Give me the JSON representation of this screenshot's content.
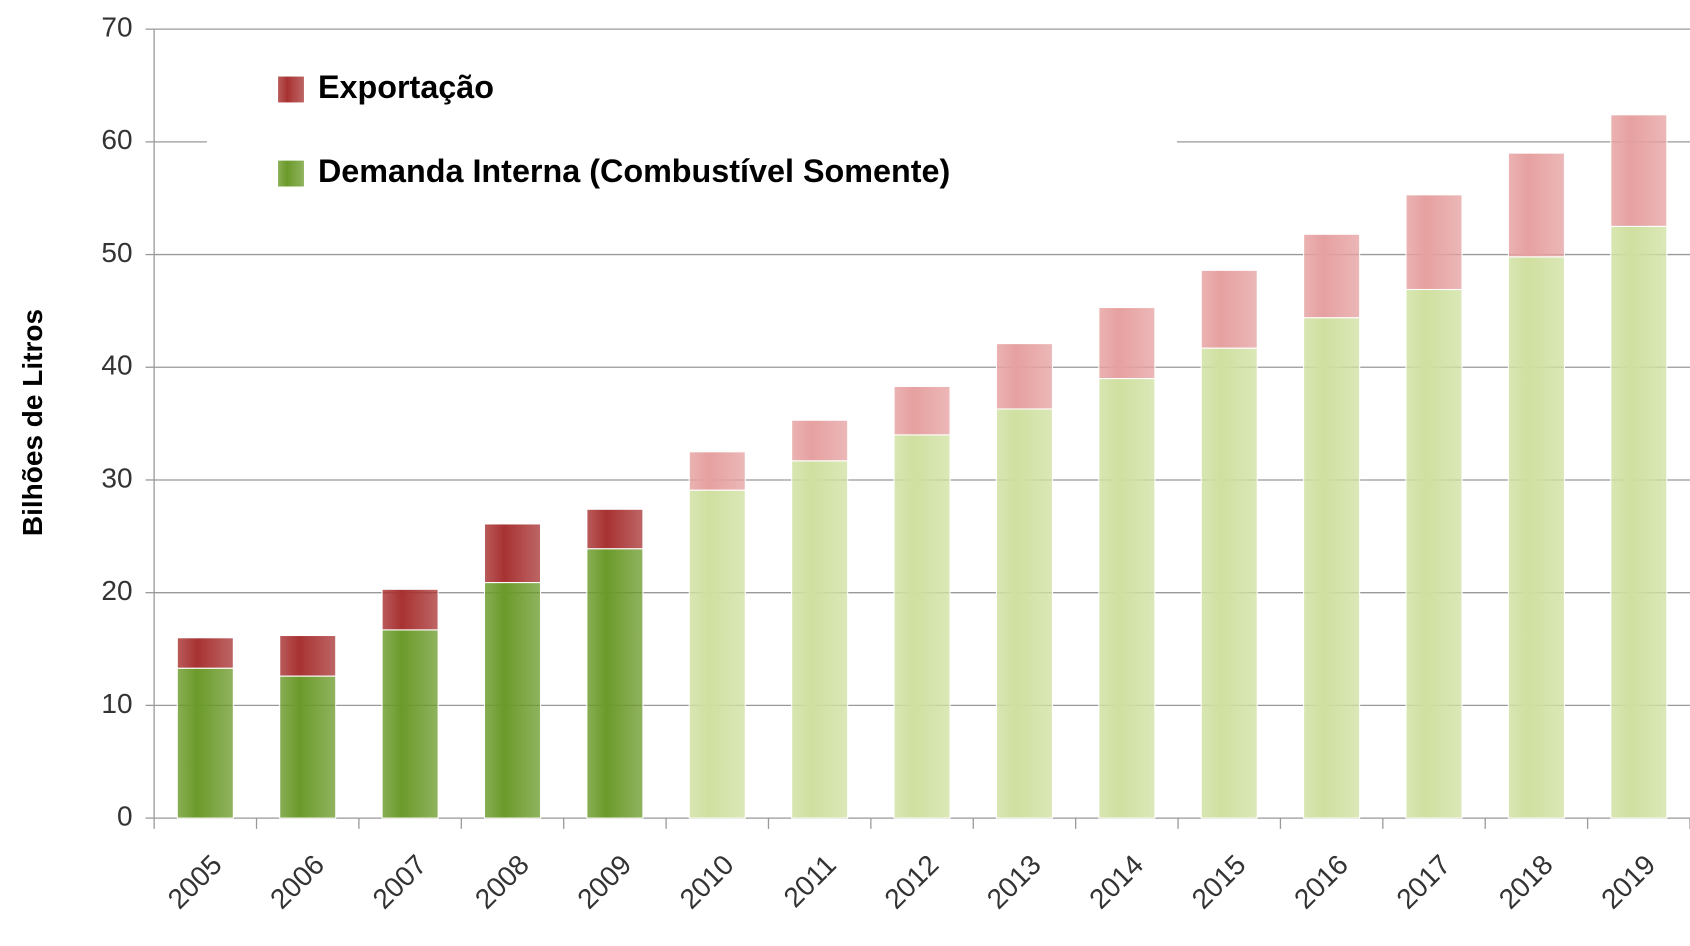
{
  "chart_data": {
    "type": "stacked_bar",
    "y_label": "Bilhões de Litros",
    "categories": [
      "2005",
      "2006",
      "2007",
      "2008",
      "2009",
      "2010",
      "2011",
      "2012",
      "2013",
      "2014",
      "2015",
      "2016",
      "2017",
      "2018",
      "2019"
    ],
    "series": [
      {
        "name": "Demanda Interna (Combustível Somente)",
        "color": "#6b9a2a",
        "colors": [
          "#6b9a2a",
          "#6b9a2a",
          "#6b9a2a",
          "#6b9a2a",
          "#6b9a2a",
          "#cfe0a0",
          "#cfe0a0",
          "#cfe0a0",
          "#cfe0a0",
          "#cfe0a0",
          "#cfe0a0",
          "#cfe0a0",
          "#cfe0a0",
          "#cfe0a0",
          "#cfe0a0"
        ],
        "values": [
          13.3,
          12.6,
          16.7,
          20.9,
          23.9,
          29.1,
          31.7,
          34.0,
          36.3,
          39.0,
          41.7,
          44.4,
          46.9,
          49.8,
          52.5
        ]
      },
      {
        "name": "Exportação",
        "color": "#a83232",
        "colors": [
          "#a83232",
          "#a83232",
          "#a83232",
          "#a83232",
          "#a83232",
          "#e6a0a0",
          "#e6a0a0",
          "#e6a0a0",
          "#e6a0a0",
          "#e6a0a0",
          "#e6a0a0",
          "#e6a0a0",
          "#e6a0a0",
          "#e6a0a0",
          "#e6a0a0"
        ],
        "values": [
          2.7,
          3.6,
          3.6,
          5.2,
          3.5,
          3.4,
          3.6,
          4.3,
          5.8,
          6.3,
          6.9,
          7.4,
          8.4,
          9.2,
          9.9
        ]
      }
    ],
    "ylim": [
      0,
      70
    ],
    "yticks": [
      0,
      10,
      20,
      30,
      40,
      50,
      60,
      70
    ],
    "grid": true,
    "legend": "top-left"
  }
}
